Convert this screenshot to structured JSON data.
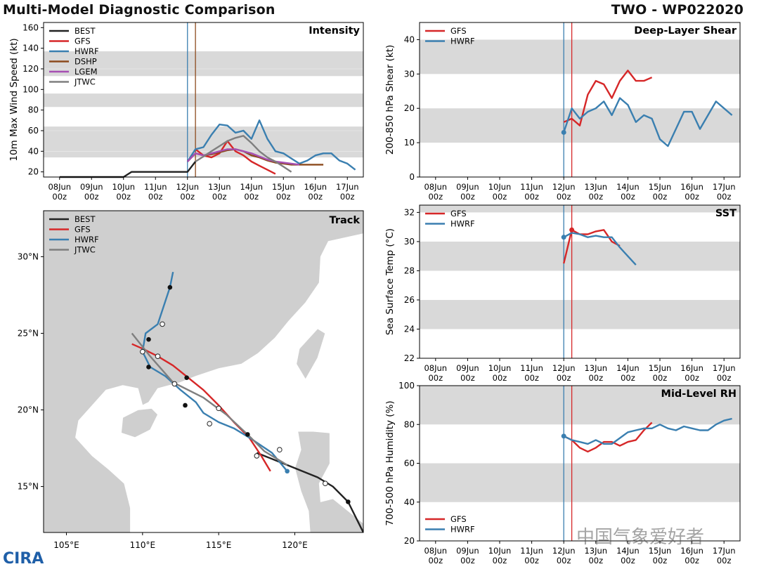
{
  "header": {
    "title": "Multi-Model Diagnostic Comparison",
    "storm": "TWO - WP022020"
  },
  "logo": "CIRA",
  "watermark": "中国气象爱好者",
  "colors": {
    "BEST": "#222222",
    "GFS": "#d62728",
    "HWRF": "#3a7fb0",
    "DSHP": "#8c4a1c",
    "LGEM": "#a64fb2",
    "JTWC": "#7f7f7f",
    "band": "#d9d9d9",
    "land": "#cfcfcf"
  },
  "time_ticks": [
    "08Jun\n00z",
    "09Jun\n00z",
    "10Jun\n00z",
    "11Jun\n00z",
    "12Jun\n00z",
    "13Jun\n00z",
    "14Jun\n00z",
    "15Jun\n00z",
    "16Jun\n00z",
    "17Jun\n00z"
  ],
  "chart_data": [
    {
      "id": "intensity",
      "type": "line",
      "title": "Intensity",
      "ylabel": "10m Max Wind Speed (kt)",
      "ylim": [
        15,
        165
      ],
      "yticks": [
        20,
        40,
        60,
        80,
        100,
        120,
        140,
        160
      ],
      "bands": [
        [
          34,
          64
        ],
        [
          83,
          96
        ],
        [
          113,
          137
        ]
      ],
      "vlines": [
        {
          "day": 12.0,
          "color": "HWRF"
        },
        {
          "day": 12.25,
          "color": "DSHP"
        }
      ],
      "grid": true,
      "legend": "top-left",
      "series": [
        {
          "name": "BEST",
          "x": [
            8.0,
            10.0,
            10.25,
            12.0,
            12.25
          ],
          "y": [
            15,
            15,
            20,
            20,
            30
          ]
        },
        {
          "name": "GFS",
          "x": [
            12.25,
            12.5,
            12.75,
            13.0,
            13.25,
            13.5,
            13.75,
            14.0,
            14.25,
            14.5,
            14.75
          ],
          "y": [
            42,
            36,
            34,
            38,
            50,
            40,
            36,
            30,
            26,
            22,
            18
          ]
        },
        {
          "name": "HWRF",
          "x": [
            12.0,
            12.25,
            12.5,
            12.75,
            13.0,
            13.25,
            13.5,
            13.75,
            14.0,
            14.25,
            14.5,
            14.75,
            15.0,
            15.25,
            15.5,
            15.75,
            16.0,
            16.25,
            16.5,
            16.75,
            17.0,
            17.25
          ],
          "y": [
            30,
            42,
            44,
            56,
            66,
            65,
            58,
            60,
            52,
            70,
            52,
            40,
            38,
            33,
            28,
            31,
            36,
            38,
            38,
            31,
            28,
            22
          ]
        },
        {
          "name": "DSHP",
          "x": [
            12.0,
            12.25,
            12.5,
            12.75,
            13.0,
            13.25,
            13.5,
            13.75,
            14.0,
            14.25,
            14.5,
            14.75,
            15.0,
            15.25,
            15.5,
            15.75,
            16.0,
            16.25
          ],
          "y": [
            30,
            38,
            36,
            37,
            39,
            41,
            42,
            40,
            36,
            34,
            31,
            29,
            28,
            27,
            27,
            27,
            27,
            27
          ]
        },
        {
          "name": "LGEM",
          "x": [
            12.0,
            12.25,
            12.5,
            12.75,
            13.0,
            13.25,
            13.5,
            13.75,
            14.0,
            14.25,
            14.5,
            14.75,
            15.0,
            15.25,
            15.5
          ],
          "y": [
            30,
            38,
            36,
            38,
            40,
            42,
            42,
            40,
            38,
            35,
            32,
            30,
            29,
            28,
            27
          ]
        },
        {
          "name": "JTWC",
          "x": [
            12.25,
            12.5,
            12.75,
            13.0,
            13.25,
            13.5,
            13.75,
            14.0,
            14.25,
            14.5,
            14.75,
            15.0,
            15.25
          ],
          "y": [
            30,
            35,
            40,
            45,
            50,
            53,
            55,
            48,
            40,
            34,
            30,
            25,
            20
          ]
        }
      ]
    },
    {
      "id": "shear",
      "type": "line",
      "title": "Deep-Layer Shear",
      "ylabel": "200-850 hPa Shear (kt)",
      "ylim": [
        0,
        45
      ],
      "yticks": [
        0,
        10,
        20,
        30,
        40
      ],
      "bands": [
        [
          10,
          20
        ],
        [
          30,
          40
        ]
      ],
      "vlines": [
        {
          "day": 12.0,
          "color": "HWRF"
        },
        {
          "day": 12.25,
          "color": "GFS"
        }
      ],
      "legend": "top-left",
      "series": [
        {
          "name": "GFS",
          "x": [
            12.0,
            12.25,
            12.5,
            12.75,
            13.0,
            13.25,
            13.5,
            13.75,
            14.0,
            14.25,
            14.5,
            14.75
          ],
          "y": [
            16,
            17,
            15,
            24,
            28,
            27,
            23,
            28,
            31,
            28,
            28,
            29
          ]
        },
        {
          "name": "HWRF",
          "x": [
            12.0,
            12.25,
            12.5,
            12.75,
            13.0,
            13.25,
            13.5,
            13.75,
            14.0,
            14.25,
            14.5,
            14.75,
            15.0,
            15.25,
            15.5,
            15.75,
            16.0,
            16.25,
            16.5,
            16.75,
            17.0,
            17.25
          ],
          "y": [
            13,
            20,
            17,
            19,
            20,
            22,
            18,
            23,
            21,
            16,
            18,
            17,
            11,
            9,
            14,
            19,
            19,
            14,
            18,
            22,
            20,
            18
          ]
        }
      ],
      "markers": [
        {
          "name": "HWRF",
          "x": 12.0,
          "y": 13
        }
      ]
    },
    {
      "id": "sst",
      "type": "line",
      "title": "SST",
      "ylabel": "Sea Surface Temp (°C)",
      "ylim": [
        22,
        32.5
      ],
      "yticks": [
        22,
        24,
        26,
        28,
        30,
        32
      ],
      "bands": [
        [
          24,
          26
        ],
        [
          28,
          30
        ],
        [
          32,
          32.5
        ]
      ],
      "vlines": [
        {
          "day": 12.0,
          "color": "HWRF"
        },
        {
          "day": 12.25,
          "color": "GFS"
        }
      ],
      "legend": "top-left",
      "series": [
        {
          "name": "GFS",
          "x": [
            12.0,
            12.25,
            12.5,
            12.75,
            13.0,
            13.25,
            13.5,
            13.75
          ],
          "y": [
            28.5,
            30.8,
            30.5,
            30.5,
            30.7,
            30.8,
            30.0,
            29.7
          ]
        },
        {
          "name": "HWRF",
          "x": [
            12.0,
            12.25,
            12.5,
            12.75,
            13.0,
            13.25,
            13.5,
            13.75,
            14.0,
            14.25
          ],
          "y": [
            30.3,
            30.6,
            30.5,
            30.3,
            30.4,
            30.3,
            30.3,
            29.6,
            29.0,
            28.4
          ]
        }
      ],
      "markers": [
        {
          "name": "HWRF",
          "x": 12.0,
          "y": 30.3
        },
        {
          "name": "GFS",
          "x": 12.25,
          "y": 30.8
        }
      ]
    },
    {
      "id": "rh",
      "type": "line",
      "title": "Mid-Level RH",
      "ylabel": "700-500 hPa Humidity (%)",
      "ylim": [
        20,
        100
      ],
      "yticks": [
        20,
        40,
        60,
        80,
        100
      ],
      "bands": [
        [
          40,
          60
        ],
        [
          80,
          100
        ]
      ],
      "vlines": [
        {
          "day": 12.0,
          "color": "HWRF"
        },
        {
          "day": 12.25,
          "color": "GFS"
        }
      ],
      "legend": "bottom-left",
      "series": [
        {
          "name": "GFS",
          "x": [
            12.0,
            12.25,
            12.5,
            12.75,
            13.0,
            13.25,
            13.5,
            13.75,
            14.0,
            14.25,
            14.5,
            14.75
          ],
          "y": [
            74,
            72,
            68,
            66,
            68,
            71,
            71,
            69,
            71,
            72,
            77,
            81
          ]
        },
        {
          "name": "HWRF",
          "x": [
            12.0,
            12.25,
            12.5,
            12.75,
            13.0,
            13.25,
            13.5,
            13.75,
            14.0,
            14.25,
            14.5,
            14.75,
            15.0,
            15.25,
            15.5,
            15.75,
            16.0,
            16.25,
            16.5,
            16.75,
            17.0,
            17.25
          ],
          "y": [
            74,
            72,
            71,
            70,
            72,
            70,
            70,
            73,
            76,
            77,
            78,
            78,
            80,
            78,
            77,
            79,
            78,
            77,
            77,
            80,
            82,
            83
          ]
        }
      ],
      "markers": [
        {
          "name": "HWRF",
          "x": 12.0,
          "y": 74
        }
      ]
    },
    {
      "id": "track",
      "type": "map",
      "title": "Track",
      "xlim": [
        103.5,
        124.5
      ],
      "ylim": [
        12,
        33
      ],
      "xticks": [
        105,
        110,
        115,
        120
      ],
      "xtick_labels": [
        "105°E",
        "110°E",
        "115°E",
        "120°E"
      ],
      "yticks": [
        15,
        20,
        25,
        30
      ],
      "ytick_labels": [
        "15°N",
        "20°N",
        "25°N",
        "30°N"
      ],
      "legend": "top-left",
      "series": [
        {
          "name": "BEST",
          "lon": [
            124.5,
            123.5,
            122.5,
            121.5,
            120.5,
            119.5,
            118.5,
            117.5
          ],
          "lat": [
            12.0,
            14.0,
            15.0,
            15.6,
            16.0,
            16.4,
            16.8,
            17.2
          ]
        },
        {
          "name": "GFS",
          "lon": [
            118.4,
            117.8,
            117.0,
            116.0,
            115.0,
            114.0,
            113.0,
            112.0,
            111.0,
            110.0,
            109.3
          ],
          "lat": [
            16.0,
            17.0,
            18.2,
            19.2,
            20.3,
            21.3,
            22.1,
            22.9,
            23.5,
            24.0,
            24.3
          ]
        },
        {
          "name": "HWRF",
          "lon": [
            119.5,
            118.5,
            117.0,
            116.0,
            115.0,
            114.0,
            113.5,
            112.5,
            111.5,
            110.5,
            110.0,
            110.2,
            111.0,
            111.8,
            112.0
          ],
          "lat": [
            16.0,
            17.2,
            18.2,
            18.8,
            19.2,
            19.8,
            20.5,
            21.3,
            22.2,
            22.8,
            23.8,
            25.0,
            25.6,
            28.0,
            29.0
          ]
        },
        {
          "name": "JTWC",
          "lon": [
            119.5,
            118.0,
            117.0,
            115.5,
            114.0,
            112.0,
            110.5,
            109.3
          ],
          "lat": [
            16.4,
            17.3,
            18.3,
            19.7,
            20.8,
            21.8,
            23.5,
            25.0
          ]
        }
      ],
      "points": [
        {
          "name": "HWRF",
          "lon": 119.5,
          "lat": 16.0,
          "filled": true
        },
        {
          "name": "BEST",
          "lon": 123.5,
          "lat": 14.0,
          "filled": true
        },
        {
          "name": "BEST",
          "lon": 122.0,
          "lat": 15.2,
          "filled": false
        },
        {
          "name": "GFS",
          "lon": 117.5,
          "lat": 17.0,
          "filled": false
        },
        {
          "name": "JTWC",
          "lon": 119.0,
          "lat": 17.4,
          "filled": false
        },
        {
          "name": "BEST",
          "lon": 116.9,
          "lat": 18.4,
          "filled": true
        },
        {
          "name": "GFS",
          "lon": 115.0,
          "lat": 20.1,
          "filled": false
        },
        {
          "name": "HWRF",
          "lon": 114.4,
          "lat": 19.1,
          "filled": false
        },
        {
          "name": "BEST",
          "lon": 112.8,
          "lat": 20.3,
          "filled": true
        },
        {
          "name": "JTWC",
          "lon": 112.1,
          "lat": 21.7,
          "filled": false
        },
        {
          "name": "BEST",
          "lon": 112.9,
          "lat": 22.1,
          "filled": true
        },
        {
          "name": "BEST",
          "lon": 110.4,
          "lat": 22.8,
          "filled": true
        },
        {
          "name": "GFS",
          "lon": 111.0,
          "lat": 23.5,
          "filled": false
        },
        {
          "name": "JTWC",
          "lon": 110.0,
          "lat": 23.8,
          "filled": false
        },
        {
          "name": "BEST",
          "lon": 110.4,
          "lat": 24.6,
          "filled": true
        },
        {
          "name": "HWRF",
          "lon": 111.3,
          "lat": 25.6,
          "filled": false
        },
        {
          "name": "BEST",
          "lon": 111.8,
          "lat": 28.0,
          "filled": true
        }
      ],
      "land": [
        [
          [
            103.5,
            33
          ],
          [
            124.5,
            33
          ],
          [
            124.5,
            31.5
          ],
          [
            122.2,
            31.0
          ],
          [
            121.7,
            30.0
          ],
          [
            121.6,
            28.3
          ],
          [
            120.7,
            27.0
          ],
          [
            119.6,
            25.8
          ],
          [
            118.7,
            24.7
          ],
          [
            117.6,
            23.7
          ],
          [
            116.5,
            23.0
          ],
          [
            115.0,
            22.7
          ],
          [
            113.5,
            22.2
          ],
          [
            112.5,
            21.8
          ],
          [
            111.0,
            21.4
          ],
          [
            110.4,
            20.5
          ],
          [
            110.0,
            20.3
          ],
          [
            109.7,
            21.4
          ],
          [
            108.7,
            21.6
          ],
          [
            107.6,
            21.3
          ],
          [
            106.7,
            20.3
          ],
          [
            105.8,
            19.3
          ],
          [
            105.6,
            18.2
          ],
          [
            106.7,
            17.0
          ],
          [
            107.8,
            16.1
          ],
          [
            108.8,
            15.2
          ],
          [
            109.2,
            13.6
          ],
          [
            109.2,
            12.0
          ],
          [
            103.5,
            12.0
          ]
        ],
        [
          [
            108.6,
            18.5
          ],
          [
            109.5,
            18.2
          ],
          [
            110.5,
            18.7
          ],
          [
            111.0,
            19.7
          ],
          [
            110.6,
            20.1
          ],
          [
            109.7,
            20.0
          ],
          [
            108.7,
            19.5
          ]
        ],
        [
          [
            120.1,
            23.0
          ],
          [
            120.7,
            22.0
          ],
          [
            121.5,
            23.4
          ],
          [
            122.0,
            25.0
          ],
          [
            121.5,
            25.3
          ],
          [
            120.3,
            24.0
          ]
        ],
        [
          [
            120.2,
            18.6
          ],
          [
            121.2,
            18.6
          ],
          [
            122.3,
            18.5
          ],
          [
            122.3,
            16.5
          ],
          [
            121.6,
            15.2
          ],
          [
            121.7,
            14.0
          ],
          [
            122.5,
            14.2
          ],
          [
            124.0,
            13.0
          ],
          [
            124.5,
            12.6
          ],
          [
            124.5,
            12.0
          ],
          [
            121.0,
            12.0
          ],
          [
            120.9,
            13.4
          ],
          [
            120.4,
            14.7
          ],
          [
            120.0,
            16.2
          ],
          [
            120.4,
            17.4
          ]
        ]
      ]
    }
  ]
}
